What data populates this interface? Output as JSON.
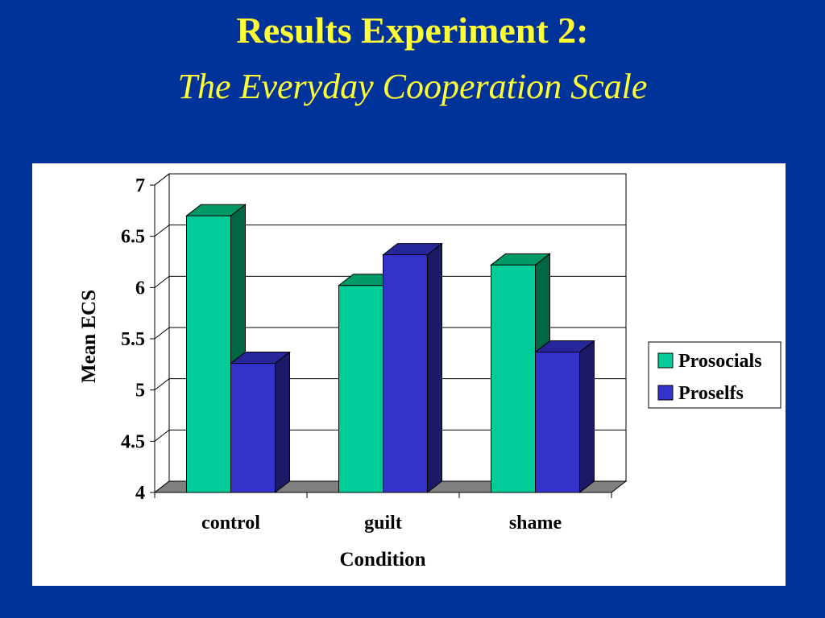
{
  "slide": {
    "title": "Results Experiment 2:",
    "subtitle": "The Everyday Cooperation Scale"
  },
  "chart_data": {
    "type": "bar",
    "style": "3d-clustered",
    "xlabel": "Condition",
    "ylabel": "Mean ECS",
    "categories": [
      "control",
      "guilt",
      "shame"
    ],
    "ylim": [
      4,
      7
    ],
    "yticks": [
      "4",
      "4.5",
      "5",
      "5.5",
      "6",
      "6.5",
      "7"
    ],
    "grid": true,
    "legend_position": "right",
    "series": [
      {
        "name": "Prosocials",
        "values": [
          6.7,
          6.02,
          6.22
        ],
        "color": "#00cc99",
        "side_color": "#006644",
        "top_color": "#009966"
      },
      {
        "name": "Proselfs",
        "values": [
          5.26,
          6.32,
          5.37
        ],
        "color": "#3333cc",
        "side_color": "#1a1a66",
        "top_color": "#262699"
      }
    ]
  }
}
